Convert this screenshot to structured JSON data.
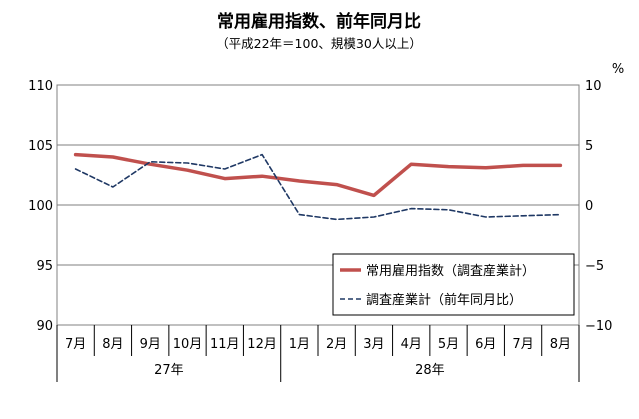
{
  "chart_data": {
    "type": "line",
    "title": "常用雇用指数、前年同月比",
    "subtitle": "（平成22年＝100、規模30人以上）",
    "right_unit": "%",
    "categories": [
      "7月",
      "8月",
      "9月",
      "10月",
      "11月",
      "12月",
      "1月",
      "2月",
      "3月",
      "4月",
      "5月",
      "6月",
      "7月",
      "8月"
    ],
    "year_groups": [
      {
        "label": "27年",
        "from": 0,
        "to": 5
      },
      {
        "label": "28年",
        "from": 6,
        "to": 13
      }
    ],
    "left_axis": {
      "min": 90,
      "max": 110,
      "step": 5,
      "ticks": [
        "90",
        "95",
        "100",
        "105",
        "110"
      ]
    },
    "right_axis": {
      "min": -10,
      "max": 10,
      "step": 5,
      "ticks": [
        "−10",
        "−5",
        "0",
        "5",
        "10"
      ]
    },
    "grid": true,
    "legend_position": "bottom-right",
    "series": [
      {
        "name": "常用雇用指数（調査産業計）",
        "axis": "left",
        "style": "solid",
        "color": "#c0504d",
        "values": [
          104.2,
          104.0,
          103.4,
          102.9,
          102.2,
          102.4,
          102.0,
          101.7,
          100.8,
          103.4,
          103.2,
          103.1,
          103.3,
          103.3
        ]
      },
      {
        "name": "調査産業計（前年同月比）",
        "axis": "right",
        "style": "dashed",
        "color": "#1f3864",
        "values": [
          3.0,
          1.5,
          3.6,
          3.5,
          3.0,
          4.2,
          -0.8,
          -1.2,
          -1.0,
          -0.3,
          -0.4,
          -1.0,
          -0.9,
          -0.8
        ]
      }
    ]
  }
}
